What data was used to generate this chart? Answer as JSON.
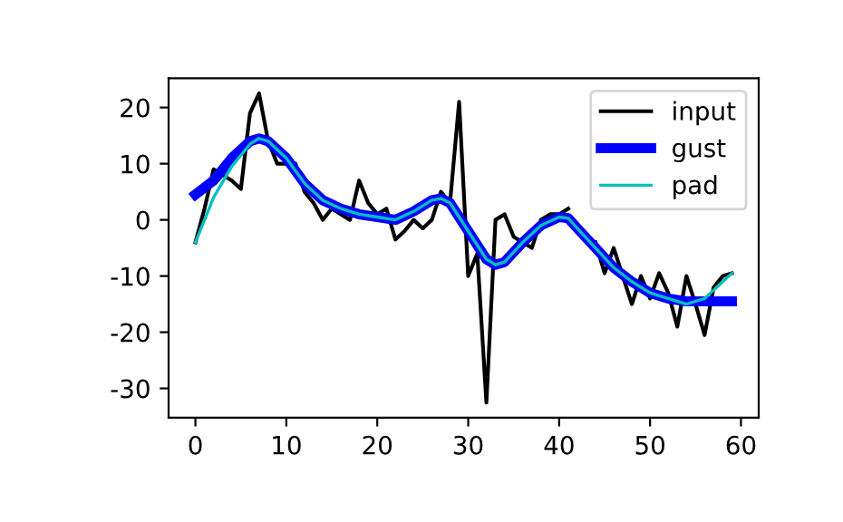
{
  "chart_data": {
    "type": "line",
    "xlim": [
      -2.95,
      61.95
    ],
    "ylim": [
      -35.2,
      25.2
    ],
    "xticks": [
      0,
      10,
      20,
      30,
      40,
      50,
      60
    ],
    "yticks": [
      -30,
      -20,
      -10,
      0,
      10,
      20
    ],
    "grid": false,
    "legend": "top right",
    "series": [
      {
        "name": "input",
        "color": "#000000",
        "x": [
          0,
          1,
          2,
          3,
          4,
          5,
          6,
          7,
          8,
          9,
          10,
          11,
          12,
          13,
          14,
          15,
          16,
          17,
          18,
          19,
          20,
          21,
          22,
          23,
          24,
          25,
          26,
          27,
          28,
          29,
          30,
          31,
          32,
          33,
          34,
          35,
          36,
          37,
          38,
          39,
          40,
          41,
          42,
          43,
          44,
          45,
          46,
          47,
          48,
          49,
          50,
          51,
          52,
          53,
          54,
          55,
          56,
          57,
          58,
          59
        ],
        "values": [
          -4,
          2,
          9,
          8,
          7,
          5.5,
          19,
          22.5,
          14,
          10,
          10,
          10,
          5,
          3,
          0,
          2,
          1,
          0,
          7,
          3,
          1,
          2,
          -3.5,
          -2,
          0,
          -1.5,
          0,
          5,
          3,
          21,
          -10,
          -6,
          -32.5,
          0,
          1,
          -3,
          -4,
          -5,
          0,
          1,
          1,
          2,
          null,
          null,
          -4,
          -9.5,
          -5,
          -10,
          -15,
          -10,
          -14,
          -9.5,
          -13,
          -19,
          -10,
          -15,
          -20.5,
          -12,
          -10,
          -9.5
        ]
      },
      {
        "name": "gust",
        "color": "#0000ff",
        "x": [
          0,
          2,
          4,
          6,
          7,
          8,
          10,
          12,
          14,
          16,
          18,
          20,
          22,
          24,
          26,
          27,
          28,
          30,
          32,
          33,
          34,
          36,
          38,
          40,
          41,
          42,
          44,
          46,
          48,
          50,
          52,
          54,
          56,
          58,
          59
        ],
        "values": [
          4.5,
          7,
          11,
          14,
          14.5,
          14,
          11,
          6.5,
          3.5,
          2,
          1,
          0.5,
          0,
          1.5,
          3.5,
          3.8,
          3,
          -2,
          -7,
          -8,
          -7.5,
          -4,
          -1,
          0.5,
          0.3,
          -1.5,
          -5,
          -8.5,
          -11,
          -13,
          -14,
          -14.5,
          -14.5,
          -14.5,
          -14.5
        ]
      },
      {
        "name": "pad",
        "color": "#00bfbf",
        "x": [
          0,
          2,
          4,
          6,
          7,
          8,
          10,
          12,
          14,
          16,
          18,
          20,
          22,
          24,
          26,
          27,
          28,
          30,
          32,
          33,
          34,
          36,
          38,
          40,
          41,
          42,
          44,
          46,
          48,
          50,
          52,
          54,
          56,
          58,
          59
        ],
        "values": [
          -4,
          4,
          9.5,
          13.5,
          14.5,
          14,
          11,
          6.5,
          3.5,
          2,
          1,
          0.5,
          0,
          1.5,
          3.5,
          3.8,
          3,
          -2,
          -7,
          -8,
          -7.5,
          -4,
          -1,
          0.5,
          0.3,
          -1.5,
          -5,
          -8.5,
          -11,
          -13,
          -14,
          -15,
          -14,
          -11,
          -9.5
        ]
      }
    ]
  }
}
